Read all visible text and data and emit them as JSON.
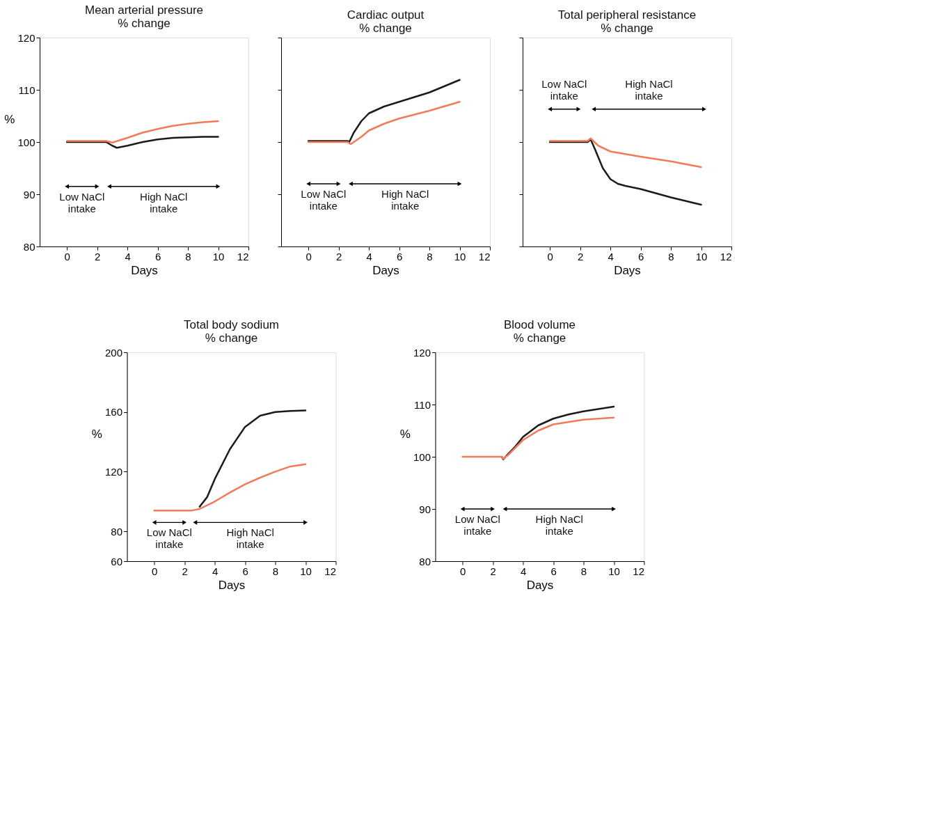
{
  "chart_data": [
    {
      "type": "line",
      "title": "Mean arterial pressure\n% change",
      "xlabel": "Days",
      "ylabel": "%",
      "xlim": [
        -1.8,
        12
      ],
      "xticks": [
        0,
        2,
        4,
        6,
        8,
        10,
        12
      ],
      "ylim": [
        80,
        120
      ],
      "yticks": [
        80,
        90,
        100,
        110,
        120
      ],
      "grid": false,
      "series": [
        {
          "color": "#1a1a1a",
          "x": [
            0,
            1,
            2,
            2.6,
            3,
            3.3,
            4,
            5,
            6,
            7,
            8,
            9,
            10
          ],
          "values": [
            100,
            100,
            100,
            100,
            99.3,
            98.9,
            99.3,
            100,
            100.5,
            100.8,
            100.9,
            101,
            101
          ]
        },
        {
          "color": "#f07a5a",
          "x": [
            0,
            1,
            2,
            2.6,
            3,
            4,
            5,
            6,
            7,
            8,
            9,
            10
          ],
          "values": [
            100.2,
            100.2,
            100.2,
            100.2,
            99.9,
            100.8,
            101.8,
            102.5,
            103.1,
            103.5,
            103.8,
            104
          ]
        },
        {
          "color": "#000000",
          "marker": "triangle",
          "x": [
            0,
            2
          ],
          "values": [
            91.5,
            91.5
          ]
        },
        {
          "color": "#000000",
          "marker": "triangle",
          "x": [
            2.8,
            10
          ],
          "values": [
            91.5,
            91.5
          ]
        }
      ],
      "annotations": [
        "Low NaCl\nintake",
        "High NaCl\nintake"
      ]
    },
    {
      "type": "line",
      "title": "Cardiac output\n% change",
      "xlabel": "Days",
      "xlim": [
        -1.8,
        12
      ],
      "xticks": [
        0,
        2,
        4,
        6,
        8,
        10,
        12
      ],
      "ylim": [
        80,
        120
      ],
      "yticks": [
        80,
        90,
        100,
        110,
        120
      ],
      "tick_labels": "x",
      "grid": false,
      "series": [
        {
          "color": "#1a1a1a",
          "x": [
            0,
            1,
            2,
            2.6,
            2.7,
            3,
            3.5,
            4,
            5,
            6,
            8,
            10
          ],
          "values": [
            100.2,
            100.2,
            100.2,
            100.2,
            100,
            101.8,
            104,
            105.5,
            106.8,
            107.7,
            109.5,
            111.9
          ]
        },
        {
          "color": "#f07a5a",
          "x": [
            0,
            1,
            2,
            2.6,
            2.8,
            3.5,
            4,
            5,
            6,
            8,
            10
          ],
          "values": [
            100,
            100,
            100,
            100,
            99.6,
            101,
            102.2,
            103.5,
            104.5,
            106,
            107.7
          ]
        },
        {
          "color": "#000000",
          "marker": "triangle",
          "x": [
            0,
            2
          ],
          "values": [
            92,
            92
          ]
        },
        {
          "color": "#000000",
          "marker": "triangle",
          "x": [
            2.8,
            10
          ],
          "values": [
            92,
            92
          ]
        }
      ],
      "annotations": [
        "Low NaCl\nintake",
        "High NaCl\nintake"
      ]
    },
    {
      "type": "line",
      "title": "Total peripheral resistance\n% change",
      "xlabel": "Days",
      "xlim": [
        -1.8,
        12
      ],
      "xticks": [
        0,
        2,
        4,
        6,
        8,
        10,
        12
      ],
      "ylim": [
        80,
        120
      ],
      "yticks": [
        80,
        90,
        100,
        110,
        120
      ],
      "tick_labels": "x",
      "grid": false,
      "series": [
        {
          "color": "#1a1a1a",
          "x": [
            0,
            1,
            2,
            2.5,
            2.7,
            3,
            3.5,
            4,
            4.5,
            5,
            6,
            7,
            8,
            9,
            10
          ],
          "values": [
            100,
            100,
            100,
            100,
            100.5,
            98.5,
            95,
            92.9,
            92,
            91.6,
            91,
            90.2,
            89.4,
            88.7,
            88
          ]
        },
        {
          "color": "#f07a5a",
          "x": [
            0,
            1,
            2,
            2.5,
            2.7,
            3.2,
            4,
            5,
            6,
            8,
            10
          ],
          "values": [
            100.2,
            100.2,
            100.2,
            100.2,
            100.7,
            99.3,
            98.2,
            97.7,
            97.2,
            96.3,
            95.2
          ]
        },
        {
          "color": "#000000",
          "marker": "triangle",
          "x": [
            0,
            1.9
          ],
          "values": [
            106.3,
            106.3
          ]
        },
        {
          "color": "#000000",
          "marker": "triangle",
          "x": [
            2.9,
            10.2
          ],
          "values": [
            106.3,
            106.3
          ]
        }
      ],
      "annotations": [
        "Low NaCl\nintake",
        "High NaCl\nintake"
      ]
    },
    {
      "type": "line",
      "title": "Total body sodium\n% change",
      "xlabel": "Days",
      "ylabel": "%",
      "xlim": [
        -1.8,
        12
      ],
      "xticks": [
        0,
        2,
        4,
        6,
        8,
        10,
        12
      ],
      "ylim": [
        60,
        200
      ],
      "yticks": [
        60,
        80,
        120,
        160,
        200
      ],
      "grid": false,
      "series": [
        {
          "color": "#1a1a1a",
          "x": [
            3,
            3.5,
            4,
            5,
            6,
            7,
            8,
            9,
            10
          ],
          "values": [
            96.5,
            103,
            115,
            135,
            150,
            157.5,
            160,
            160.7,
            161
          ]
        },
        {
          "color": "#f07a5a",
          "x": [
            0,
            1,
            2,
            2.5,
            3,
            4,
            5,
            6,
            7,
            8,
            9,
            10
          ],
          "values": [
            94,
            94,
            94,
            94,
            95,
            100,
            106,
            111.5,
            116,
            120,
            123.5,
            125
          ]
        },
        {
          "color": "#000000",
          "marker": "triangle",
          "x": [
            0,
            2
          ],
          "values": [
            86,
            86
          ]
        },
        {
          "color": "#000000",
          "marker": "triangle",
          "x": [
            2.7,
            10
          ],
          "values": [
            86,
            86
          ]
        }
      ],
      "annotations": [
        "Low NaCl\nintake",
        "High NaCl\nintake"
      ]
    },
    {
      "type": "line",
      "title": "Blood volume\n% change",
      "xlabel": "Days",
      "ylabel": "%",
      "xlim": [
        -1.8,
        12
      ],
      "xticks": [
        0,
        2,
        4,
        6,
        8,
        10,
        12
      ],
      "ylim": [
        80,
        120
      ],
      "yticks": [
        80,
        90,
        100,
        110,
        120
      ],
      "grid": false,
      "series": [
        {
          "color": "#1a1a1a",
          "x": [
            2.6,
            2.7,
            3,
            3.5,
            4,
            5,
            6,
            7,
            8,
            10
          ],
          "values": [
            100,
            99.5,
            100.5,
            102,
            103.8,
            106,
            107.3,
            108.1,
            108.7,
            109.6
          ]
        },
        {
          "color": "#f07a5a",
          "x": [
            0,
            1,
            2,
            2.6,
            2.7,
            3,
            4,
            5,
            6,
            8,
            10
          ],
          "values": [
            100,
            100,
            100,
            100,
            99.6,
            100.3,
            103.2,
            105,
            106.2,
            107.1,
            107.5
          ]
        },
        {
          "color": "#000000",
          "marker": "triangle",
          "x": [
            0,
            2
          ],
          "values": [
            90,
            90
          ]
        },
        {
          "color": "#000000",
          "marker": "triangle",
          "x": [
            2.8,
            10
          ],
          "values": [
            90,
            90
          ]
        }
      ],
      "annotations": [
        "Low NaCl\nintake",
        "High NaCl\nintake"
      ]
    }
  ]
}
